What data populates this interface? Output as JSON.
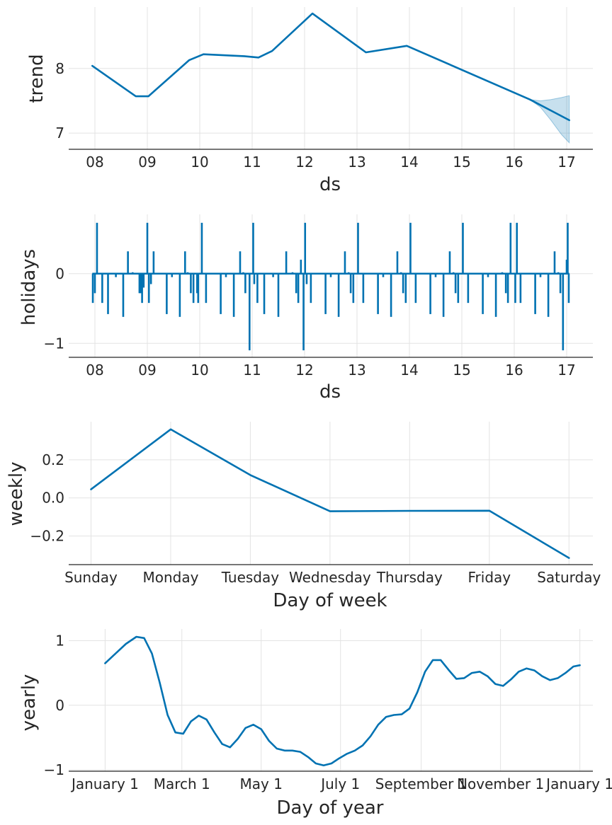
{
  "colors": {
    "line": "#0072b2",
    "band": "#0072b2",
    "grid": "#e3e3e3",
    "axis": "#262626",
    "text": "#262626"
  },
  "chart_data": [
    {
      "id": "trend",
      "type": "line",
      "xlabel": "ds",
      "ylabel": "trend",
      "xlim": [
        7.5,
        17.5
      ],
      "ylim": [
        6.75,
        8.95
      ],
      "xticks": [
        {
          "value": 8,
          "label": "08"
        },
        {
          "value": 9,
          "label": "09"
        },
        {
          "value": 10,
          "label": "10"
        },
        {
          "value": 11,
          "label": "11"
        },
        {
          "value": 12,
          "label": "12"
        },
        {
          "value": 13,
          "label": "13"
        },
        {
          "value": 14,
          "label": "14"
        },
        {
          "value": 15,
          "label": "15"
        },
        {
          "value": 16,
          "label": "16"
        },
        {
          "value": 17,
          "label": "17"
        }
      ],
      "yticks": [
        {
          "value": 7,
          "label": "7"
        },
        {
          "value": 8,
          "label": "8"
        }
      ],
      "grid": true,
      "series": [
        {
          "x": [
            7.95,
            8.78,
            9.02,
            9.8,
            10.07,
            10.85,
            11.12,
            11.38,
            12.15,
            13.17,
            13.95,
            16.3,
            17.05
          ],
          "y": [
            8.04,
            7.57,
            7.57,
            8.13,
            8.22,
            8.19,
            8.17,
            8.27,
            8.85,
            8.25,
            8.35,
            7.52,
            7.2
          ]
        }
      ],
      "uncertainty_band": {
        "x": [
          16.3,
          16.5,
          16.7,
          16.9,
          17.05
        ],
        "upper": [
          7.52,
          7.5,
          7.52,
          7.55,
          7.58
        ],
        "lower": [
          7.52,
          7.4,
          7.2,
          6.98,
          6.85
        ]
      }
    },
    {
      "id": "holidays",
      "type": "line",
      "xlabel": "ds",
      "ylabel": "holidays",
      "xlim": [
        7.5,
        17.5
      ],
      "ylim": [
        -1.2,
        0.85
      ],
      "xticks": [
        {
          "value": 8,
          "label": "08"
        },
        {
          "value": 9,
          "label": "09"
        },
        {
          "value": 10,
          "label": "10"
        },
        {
          "value": 11,
          "label": "11"
        },
        {
          "value": 12,
          "label": "12"
        },
        {
          "value": 13,
          "label": "13"
        },
        {
          "value": 14,
          "label": "14"
        },
        {
          "value": 15,
          "label": "15"
        },
        {
          "value": 16,
          "label": "16"
        },
        {
          "value": 17,
          "label": "17"
        }
      ],
      "yticks": [
        {
          "value": -1,
          "label": "−1"
        },
        {
          "value": 0,
          "label": "0"
        }
      ],
      "grid": true,
      "baseline_x": [
        7.95,
        17.05
      ],
      "spikes": {
        "x": [
          7.96,
          8.0,
          8.04,
          8.14,
          8.25,
          8.4,
          8.54,
          8.63,
          8.72,
          8.85,
          8.87,
          8.9,
          8.93,
          9.0,
          9.03,
          9.07,
          9.12,
          9.37,
          9.47,
          9.62,
          9.72,
          9.77,
          9.83,
          9.88,
          9.95,
          9.97,
          10.04,
          10.12,
          10.4,
          10.5,
          10.65,
          10.77,
          10.83,
          10.87,
          10.95,
          11.02,
          11.04,
          11.1,
          11.23,
          11.4,
          11.5,
          11.65,
          11.77,
          11.84,
          11.88,
          11.93,
          11.98,
          12.01,
          12.04,
          12.12,
          12.4,
          12.5,
          12.65,
          12.77,
          12.84,
          12.88,
          12.93,
          13.02,
          13.12,
          13.4,
          13.5,
          13.65,
          13.77,
          13.84,
          13.88,
          13.93,
          14.02,
          14.12,
          14.4,
          14.5,
          14.65,
          14.77,
          14.84,
          14.88,
          14.93,
          15.02,
          15.12,
          15.4,
          15.5,
          15.65,
          15.77,
          15.84,
          15.88,
          15.93,
          16.02,
          16.05,
          16.12,
          16.4,
          16.5,
          16.65,
          16.77,
          16.84,
          16.88,
          16.93,
          17.0,
          17.02,
          17.04
        ],
        "y": [
          -0.42,
          -0.28,
          0.73,
          -0.42,
          -0.58,
          -0.05,
          -0.62,
          0.32,
          0.02,
          -0.28,
          -0.28,
          -0.42,
          -0.2,
          0.73,
          -0.42,
          -0.15,
          0.32,
          -0.58,
          -0.05,
          -0.62,
          0.32,
          0.02,
          -0.28,
          -0.42,
          -0.28,
          -0.42,
          0.73,
          -0.42,
          -0.58,
          -0.05,
          -0.62,
          0.32,
          0.02,
          -0.28,
          -1.1,
          0.73,
          -0.15,
          -0.42,
          -0.58,
          -0.05,
          -0.62,
          0.32,
          0.02,
          -0.28,
          -0.42,
          0.2,
          -1.1,
          0.73,
          -0.15,
          -0.42,
          -0.58,
          -0.05,
          -0.62,
          0.32,
          0.02,
          -0.28,
          -0.42,
          0.73,
          -0.42,
          -0.58,
          -0.05,
          -0.62,
          0.32,
          0.02,
          -0.28,
          -0.42,
          0.73,
          -0.42,
          -0.58,
          -0.05,
          -0.62,
          0.32,
          0.02,
          -0.28,
          -0.42,
          0.73,
          -0.42,
          -0.58,
          -0.05,
          -0.62,
          0.02,
          -0.28,
          -0.42,
          0.73,
          -0.42,
          0.73,
          -0.42,
          -0.58,
          -0.05,
          -0.62,
          0.32,
          0.02,
          -0.28,
          -1.1,
          0.2,
          0.73,
          -0.42
        ]
      }
    },
    {
      "id": "weekly",
      "type": "line",
      "xlabel": "Day of week",
      "ylabel": "weekly",
      "xlim": [
        -0.28,
        6.3
      ],
      "ylim": [
        -0.35,
        0.4
      ],
      "xticks": [
        {
          "value": 0,
          "label": "Sunday"
        },
        {
          "value": 1,
          "label": "Monday"
        },
        {
          "value": 2,
          "label": "Tuesday"
        },
        {
          "value": 3,
          "label": "Wednesday"
        },
        {
          "value": 4,
          "label": "Thursday"
        },
        {
          "value": 5,
          "label": "Friday"
        },
        {
          "value": 6,
          "label": "Saturday"
        }
      ],
      "yticks": [
        {
          "value": -0.2,
          "label": "−0.2"
        },
        {
          "value": 0.0,
          "label": "0.0"
        },
        {
          "value": 0.2,
          "label": "0.2"
        }
      ],
      "grid": true,
      "series": [
        {
          "x": [
            0,
            1,
            2,
            3,
            4,
            5,
            6
          ],
          "y": [
            0.045,
            0.36,
            0.12,
            -0.07,
            -0.068,
            -0.067,
            -0.315
          ]
        }
      ]
    },
    {
      "id": "yearly",
      "type": "line",
      "xlabel": "Day of year",
      "ylabel": "yearly",
      "xlim": [
        -28,
        375
      ],
      "ylim": [
        -1.02,
        1.18
      ],
      "xticks": [
        {
          "value": 0,
          "label": "January 1"
        },
        {
          "value": 59,
          "label": "March 1"
        },
        {
          "value": 120,
          "label": "May 1"
        },
        {
          "value": 181,
          "label": "July 1"
        },
        {
          "value": 243,
          "label": "September 1"
        },
        {
          "value": 304,
          "label": "November 1"
        },
        {
          "value": 365,
          "label": "January 1"
        }
      ],
      "yticks": [
        {
          "value": -1,
          "label": "−1"
        },
        {
          "value": 0,
          "label": "0"
        },
        {
          "value": 1,
          "label": "1"
        }
      ],
      "grid": true,
      "series": [
        {
          "x": [
            0,
            8,
            16,
            24,
            30,
            36,
            42,
            48,
            54,
            60,
            66,
            72,
            78,
            84,
            90,
            96,
            102,
            108,
            114,
            120,
            126,
            132,
            138,
            144,
            150,
            156,
            162,
            168,
            174,
            180,
            186,
            192,
            198,
            204,
            210,
            216,
            222,
            228,
            234,
            240,
            246,
            252,
            258,
            264,
            270,
            276,
            282,
            288,
            294,
            300,
            306,
            312,
            318,
            324,
            330,
            336,
            342,
            348,
            354,
            360,
            365
          ],
          "y": [
            0.65,
            0.8,
            0.95,
            1.06,
            1.04,
            0.8,
            0.35,
            -0.15,
            -0.42,
            -0.44,
            -0.25,
            -0.16,
            -0.22,
            -0.42,
            -0.6,
            -0.65,
            -0.52,
            -0.35,
            -0.3,
            -0.37,
            -0.55,
            -0.67,
            -0.7,
            -0.7,
            -0.72,
            -0.8,
            -0.9,
            -0.93,
            -0.9,
            -0.82,
            -0.75,
            -0.7,
            -0.62,
            -0.48,
            -0.3,
            -0.18,
            -0.15,
            -0.14,
            -0.05,
            0.2,
            0.52,
            0.7,
            0.7,
            0.55,
            0.41,
            0.42,
            0.5,
            0.52,
            0.45,
            0.33,
            0.3,
            0.4,
            0.52,
            0.57,
            0.54,
            0.45,
            0.39,
            0.42,
            0.5,
            0.6,
            0.62
          ]
        }
      ]
    }
  ]
}
